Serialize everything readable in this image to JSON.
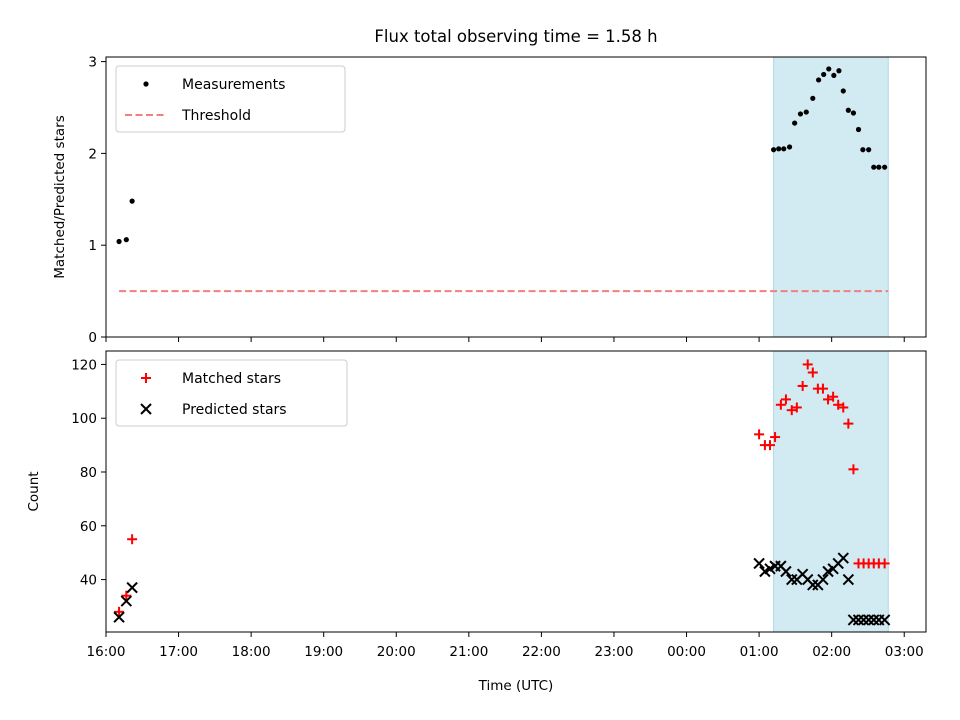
{
  "title": "Flux total observing time = 1.58 h",
  "colors": {
    "measurement": "#000000",
    "threshold": "#f08080",
    "matched": "#ff0000",
    "predicted": "#000000",
    "highlight": "#add8e6"
  },
  "chart_data": [
    {
      "type": "scatter",
      "ylabel": "Matched/Predicted stars",
      "xlabel": "",
      "xlim": [
        16.0,
        27.3
      ],
      "ylim": [
        0,
        3.05
      ],
      "xticks": [
        "16:00",
        "17:00",
        "18:00",
        "19:00",
        "20:00",
        "21:00",
        "22:00",
        "23:00",
        "00:00",
        "01:00",
        "02:00",
        "03:00"
      ],
      "yticks": [
        0,
        1,
        2,
        3
      ],
      "highlight_span": [
        25.2,
        26.78
      ],
      "legend": {
        "position": "upper-left",
        "entries": [
          {
            "label": "Measurements",
            "marker": "dot"
          },
          {
            "label": "Threshold",
            "marker": "dashed-line"
          }
        ]
      },
      "series": [
        {
          "name": "Measurements",
          "marker": "dot",
          "x": [
            16.18,
            16.28,
            16.36,
            25.2,
            25.27,
            25.34,
            25.42,
            25.49,
            25.57,
            25.65,
            25.74,
            25.82,
            25.89,
            25.96,
            26.03,
            26.1,
            26.16,
            26.23,
            26.3,
            26.37,
            26.43,
            26.51,
            26.58,
            26.65,
            26.73
          ],
          "y": [
            1.04,
            1.06,
            1.48,
            2.04,
            2.05,
            2.05,
            2.07,
            2.33,
            2.43,
            2.45,
            2.6,
            2.8,
            2.86,
            2.92,
            2.85,
            2.9,
            2.68,
            2.47,
            2.44,
            2.26,
            2.04,
            2.04,
            1.85,
            1.85,
            1.85
          ]
        },
        {
          "name": "Threshold",
          "marker": "dashed-line",
          "x": [
            16.18,
            26.78
          ],
          "y": [
            0.5,
            0.5
          ]
        }
      ]
    },
    {
      "type": "scatter",
      "ylabel": "Count",
      "xlabel": "Time (UTC)",
      "xlim": [
        16.0,
        27.3
      ],
      "ylim": [
        20.5,
        125
      ],
      "xticks": [
        "16:00",
        "17:00",
        "18:00",
        "19:00",
        "20:00",
        "21:00",
        "22:00",
        "23:00",
        "00:00",
        "01:00",
        "02:00",
        "03:00"
      ],
      "yticks": [
        40,
        60,
        80,
        100,
        120
      ],
      "highlight_span": [
        25.2,
        26.78
      ],
      "legend": {
        "position": "upper-left",
        "entries": [
          {
            "label": "Matched stars",
            "marker": "plus"
          },
          {
            "label": "Predicted stars",
            "marker": "x"
          }
        ]
      },
      "series": [
        {
          "name": "Matched stars",
          "marker": "plus",
          "x": [
            16.18,
            16.28,
            16.36,
            25.0,
            25.08,
            25.15,
            25.22,
            25.3,
            25.37,
            25.45,
            25.52,
            25.6,
            25.67,
            25.74,
            25.81,
            25.88,
            25.95,
            26.02,
            26.09,
            26.16,
            26.23,
            26.3,
            26.37,
            26.44,
            26.51,
            26.58,
            26.65,
            26.73
          ],
          "y": [
            28,
            34,
            55,
            94,
            90,
            90,
            93,
            105,
            107,
            103,
            104,
            112,
            120,
            117,
            111,
            111,
            107,
            108,
            105,
            104,
            98,
            81,
            46,
            46,
            46,
            46,
            46,
            46
          ]
        },
        {
          "name": "Predicted stars",
          "marker": "x",
          "x": [
            16.18,
            16.28,
            16.36,
            25.0,
            25.08,
            25.15,
            25.22,
            25.3,
            25.37,
            25.45,
            25.52,
            25.6,
            25.67,
            25.74,
            25.81,
            25.88,
            25.95,
            26.02,
            26.09,
            26.16,
            26.23,
            26.3,
            26.37,
            26.44,
            26.51,
            26.58,
            26.65,
            26.73
          ],
          "y": [
            26,
            32,
            37,
            46,
            43,
            44,
            45,
            45,
            43,
            40,
            40,
            42,
            40,
            38,
            38,
            40,
            43,
            44,
            46,
            48,
            40,
            25,
            25,
            25,
            25,
            25,
            25,
            25
          ]
        }
      ]
    }
  ]
}
